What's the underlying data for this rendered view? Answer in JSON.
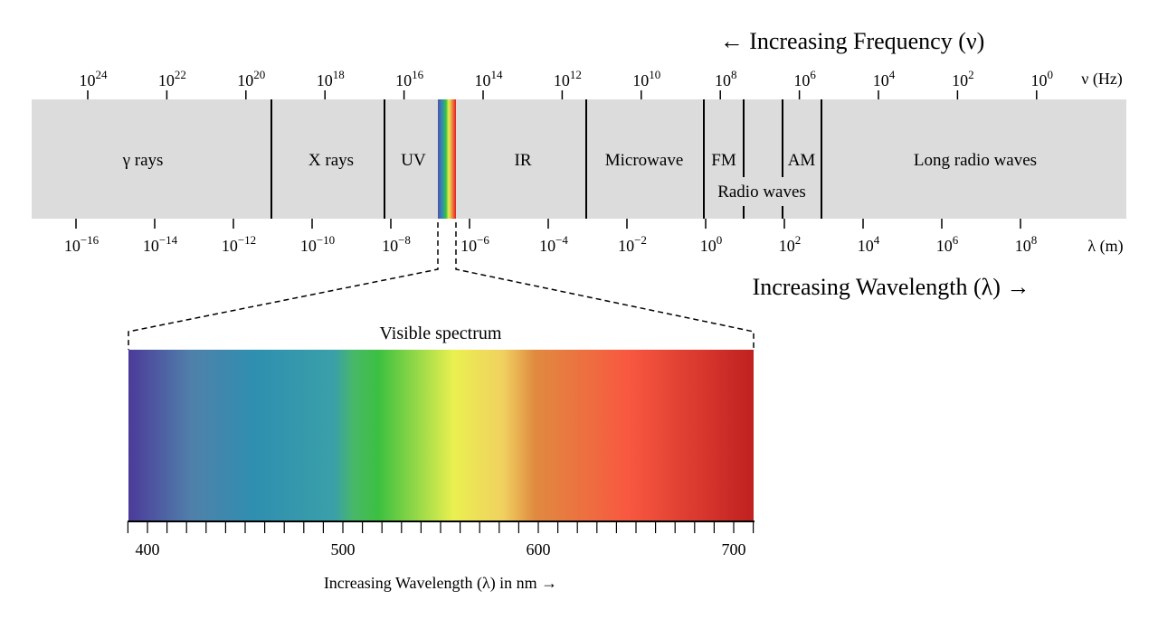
{
  "frequency_axis": {
    "title": "← Increasing Frequency (ν)",
    "unit": "ν (Hz)",
    "ticks": [
      {
        "base": "10",
        "exponent": "24"
      },
      {
        "base": "10",
        "exponent": "22"
      },
      {
        "base": "10",
        "exponent": "20"
      },
      {
        "base": "10",
        "exponent": "18"
      },
      {
        "base": "10",
        "exponent": "16"
      },
      {
        "base": "10",
        "exponent": "14"
      },
      {
        "base": "10",
        "exponent": "12"
      },
      {
        "base": "10",
        "exponent": "10"
      },
      {
        "base": "10",
        "exponent": "8"
      },
      {
        "base": "10",
        "exponent": "6"
      },
      {
        "base": "10",
        "exponent": "4"
      },
      {
        "base": "10",
        "exponent": "2"
      },
      {
        "base": "10",
        "exponent": "0"
      }
    ]
  },
  "bands": [
    "γ rays",
    "X rays",
    "UV",
    "IR",
    "Microwave",
    "FM",
    "AM",
    "Long radio waves"
  ],
  "radio_label": "Radio waves",
  "wavelength_axis": {
    "title": "Increasing Wavelength (λ) →",
    "unit": "λ (m)",
    "ticks": [
      {
        "base": "10",
        "exponent": "−16"
      },
      {
        "base": "10",
        "exponent": "−14"
      },
      {
        "base": "10",
        "exponent": "−12"
      },
      {
        "base": "10",
        "exponent": "−10"
      },
      {
        "base": "10",
        "exponent": "−8"
      },
      {
        "base": "10",
        "exponent": "−6"
      },
      {
        "base": "10",
        "exponent": "−4"
      },
      {
        "base": "10",
        "exponent": "−2"
      },
      {
        "base": "10",
        "exponent": "0"
      },
      {
        "base": "10",
        "exponent": "2"
      },
      {
        "base": "10",
        "exponent": "4"
      },
      {
        "base": "10",
        "exponent": "6"
      },
      {
        "base": "10",
        "exponent": "8"
      }
    ]
  },
  "visible": {
    "title": "Visible spectrum",
    "ticks": [
      400,
      500,
      600,
      700
    ],
    "caption": "Increasing Wavelength (λ) in nm →"
  }
}
